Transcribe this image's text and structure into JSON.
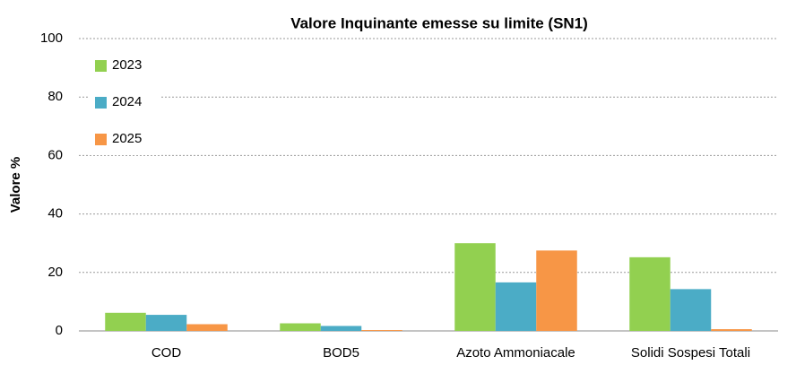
{
  "chart_data": {
    "type": "bar",
    "title": "Valore Inquinante emesse su limite (SN1)",
    "y_label": "Valore %",
    "categories": [
      "COD",
      "BOD5",
      "Azoto Ammoniacale",
      "Solidi Sospesi Totali"
    ],
    "series": [
      {
        "name": "2023",
        "color": "#92d050",
        "values": [
          6.2,
          2.6,
          30,
          25.2
        ]
      },
      {
        "name": "2024",
        "color": "#4bacc6",
        "values": [
          5.5,
          1.7,
          16.6,
          14.3
        ]
      },
      {
        "name": "2025",
        "color": "#f79646",
        "values": [
          2.3,
          0.3,
          27.5,
          0.6
        ]
      }
    ],
    "ylim": [
      0,
      100
    ],
    "yticks": [
      0,
      20,
      40,
      60,
      80,
      100
    ],
    "grid": true,
    "legend": "top-left"
  }
}
